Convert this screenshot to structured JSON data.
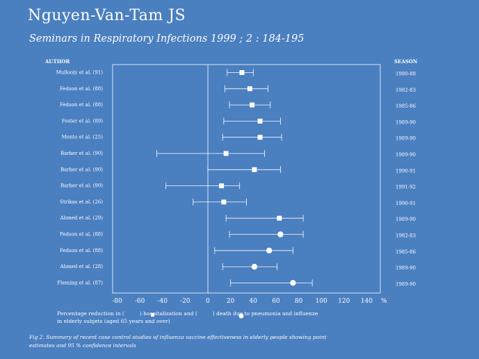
{
  "header": {
    "title": "Nguyen-Van-Tam JS",
    "subtitle": "Seminars in Respiratory Infections 1999 ; 2 : 184-195"
  },
  "chart_data": {
    "type": "forest",
    "title": "",
    "author_header": "AUTHOR",
    "season_header": "SEASON",
    "xlabel": "%",
    "xlim": [
      -84,
      152
    ],
    "xticks": [
      -80,
      -60,
      -40,
      -20,
      0,
      20,
      40,
      60,
      80,
      100,
      120,
      140
    ],
    "xtick_labels": [
      "-80",
      "-60",
      "-40",
      "-20",
      "0",
      "20",
      "40",
      "60",
      "80",
      "100",
      "120",
      "140"
    ],
    "reference_line": 0,
    "rows": [
      {
        "author": "Mullooly et al. (91)",
        "season": "1980-88",
        "estimate": 30,
        "ci": [
          17,
          40
        ],
        "outcome": "hospitalization"
      },
      {
        "author": "Fedson et al. (88)",
        "season": "1982-83",
        "estimate": 37,
        "ci": [
          15,
          53
        ],
        "outcome": "hospitalization"
      },
      {
        "author": "Fedson et al. (88)",
        "season": "1985-86",
        "estimate": 39,
        "ci": [
          19,
          55
        ],
        "outcome": "hospitalization"
      },
      {
        "author": "Foster et al. (89)",
        "season": "1989-90",
        "estimate": 46,
        "ci": [
          14,
          64
        ],
        "outcome": "hospitalization"
      },
      {
        "author": "Monto et al. (25)",
        "season": "1989-90",
        "estimate": 46,
        "ci": [
          13,
          65
        ],
        "outcome": "hospitalization"
      },
      {
        "author": "Barker et al. (90)",
        "season": "1989-90",
        "estimate": 16,
        "ci": [
          -45,
          50
        ],
        "outcome": "hospitalization"
      },
      {
        "author": "Barker et al. (90)",
        "season": "1990-91",
        "estimate": 41,
        "ci": [
          0,
          64
        ],
        "outcome": "hospitalization"
      },
      {
        "author": "Barker et al. (90)",
        "season": "1991-92",
        "estimate": 12,
        "ci": [
          -37,
          28
        ],
        "outcome": "hospitalization"
      },
      {
        "author": "Strikas et al. (26)",
        "season": "1990-91",
        "estimate": 14,
        "ci": [
          -13,
          34
        ],
        "outcome": "hospitalization"
      },
      {
        "author": "Ahmed et al. (29)",
        "season": "1989-90",
        "estimate": 63,
        "ci": [
          16,
          84
        ],
        "outcome": "hospitalization"
      },
      {
        "author": "Fedson et al. (88)",
        "season": "1982-83",
        "estimate": 64,
        "ci": [
          19,
          84
        ],
        "outcome": "death"
      },
      {
        "author": "Fedson et al. (88)",
        "season": "1985-86",
        "estimate": 54,
        "ci": [
          6,
          75
        ],
        "outcome": "death"
      },
      {
        "author": "Ahmed et al. (28)",
        "season": "1989-90",
        "estimate": 41,
        "ci": [
          13,
          61
        ],
        "outcome": "death"
      },
      {
        "author": "Fleming et al. (87)",
        "season": "1989-90",
        "estimate": 75,
        "ci": [
          20,
          92
        ],
        "outcome": "death"
      }
    ]
  },
  "legend": {
    "text_a": "Percentage reduction in (",
    "text_b": ") hospitalization and (",
    "text_c": ") death due to pneumonia and influenze",
    "text_d": "in elderly subjets (aged 65 years and over)"
  },
  "caption": {
    "line1": "Fig 2. Summary of recent case control studies of influenza vaccine effectiveness in elderly people showing point",
    "line2": "estimates and 95 % confidence intervals"
  }
}
